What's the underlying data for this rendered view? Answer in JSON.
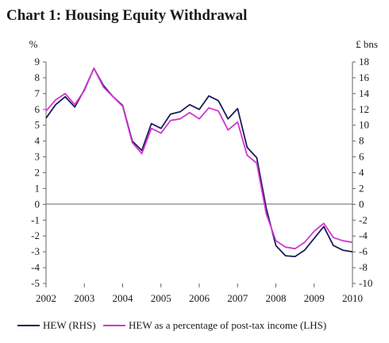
{
  "chart_data": {
    "type": "line",
    "title": "Chart 1: Housing Equity Withdrawal",
    "left_unit": "%",
    "right_unit": "£ bns",
    "x_ticks": [
      "2002",
      "2003",
      "2004",
      "2005",
      "2006",
      "2007",
      "2008",
      "2009",
      "2010"
    ],
    "x_range": [
      2002,
      2010
    ],
    "y_left": {
      "min": -5,
      "max": 9,
      "step": 1
    },
    "y_right": {
      "min": -10,
      "max": 18,
      "step": 2
    },
    "grid": false,
    "legend_position": "bottom",
    "series": [
      {
        "name": "HEW (RHS)",
        "axis": "right",
        "color": "#1c1c5a",
        "x": [
          2002.0,
          2002.25,
          2002.5,
          2002.75,
          2003.0,
          2003.25,
          2003.5,
          2003.75,
          2004.0,
          2004.25,
          2004.5,
          2004.75,
          2005.0,
          2005.25,
          2005.5,
          2005.75,
          2006.0,
          2006.25,
          2006.5,
          2006.75,
          2007.0,
          2007.25,
          2007.5,
          2007.75,
          2008.0,
          2008.25,
          2008.5,
          2008.75,
          2009.0,
          2009.25,
          2009.5,
          2009.75,
          2010.0
        ],
        "values": [
          10.9,
          12.6,
          13.6,
          12.3,
          14.5,
          17.2,
          15.0,
          13.6,
          12.5,
          8.0,
          6.8,
          10.2,
          9.6,
          11.4,
          11.7,
          12.6,
          12.0,
          13.7,
          13.1,
          10.8,
          12.1,
          7.2,
          5.9,
          -0.5,
          -5.2,
          -6.5,
          -6.6,
          -5.8,
          -4.3,
          -2.8,
          -5.2,
          -5.8,
          -6.0
        ]
      },
      {
        "name": "HEW as a percentage of post-tax income (LHS)",
        "axis": "left",
        "color": "#d236d2",
        "x": [
          2002.0,
          2002.25,
          2002.5,
          2002.75,
          2003.0,
          2003.25,
          2003.5,
          2003.75,
          2004.0,
          2004.25,
          2004.5,
          2004.75,
          2005.0,
          2005.25,
          2005.5,
          2005.75,
          2006.0,
          2006.25,
          2006.5,
          2006.75,
          2007.0,
          2007.25,
          2007.5,
          2007.75,
          2008.0,
          2008.25,
          2008.5,
          2008.75,
          2009.0,
          2009.25,
          2009.5,
          2009.75,
          2010.0
        ],
        "values": [
          5.9,
          6.6,
          7.0,
          6.3,
          7.2,
          8.6,
          7.4,
          6.8,
          6.2,
          3.9,
          3.2,
          4.8,
          4.5,
          5.3,
          5.4,
          5.8,
          5.4,
          6.1,
          5.9,
          4.7,
          5.2,
          3.1,
          2.6,
          -0.6,
          -2.3,
          -2.7,
          -2.8,
          -2.4,
          -1.7,
          -1.2,
          -2.1,
          -2.3,
          -2.4
        ]
      }
    ]
  }
}
